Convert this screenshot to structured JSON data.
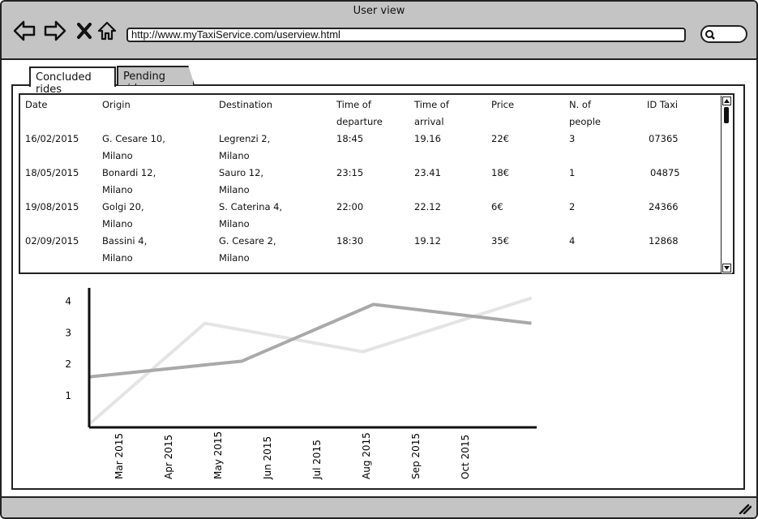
{
  "window": {
    "title": "User view"
  },
  "address_bar": {
    "url": "http://www.myTaxiService.com/userview.html"
  },
  "tabs": [
    {
      "label": "Concluded rides",
      "active": true
    },
    {
      "label": "Pending rides",
      "active": false
    }
  ],
  "table": {
    "headers": [
      "Date",
      "Origin",
      "Destination",
      "Time of\ndeparture",
      "Time of\narrival",
      "Price",
      "N. of\npeople",
      "ID Taxi"
    ],
    "rows": [
      [
        "16/02/2015",
        "G. Cesare 10,\nMilano",
        "Legrenzi 2,\nMilano",
        "18:45",
        "19.16",
        "22€",
        "3",
        "07365"
      ],
      [
        "18/05/2015",
        "Bonardi 12,\nMilano",
        "Sauro 12,\nMilano",
        "23:15",
        "23.41",
        "18€",
        "1",
        "04875"
      ],
      [
        "19/08/2015",
        "Golgi 20,\nMilano",
        "S. Caterina 4,\nMilano",
        "22:00",
        "22.12",
        "6€",
        "2",
        "24366"
      ],
      [
        "02/09/2015",
        "Bassini 4,\nMilano",
        "G. Cesare 2,\nMilano",
        "18:30",
        "19.12",
        "35€",
        "4",
        "12868"
      ]
    ]
  },
  "chart_data": {
    "type": "line",
    "x": [
      "Mar 2015",
      "Apr 2015",
      "May 2015",
      "Jun 2015",
      "Jul 2015",
      "Aug 2015",
      "Sep 2015",
      "Oct 2015"
    ],
    "yticks": [
      1,
      2,
      3,
      4
    ],
    "ylim": [
      0,
      4.5
    ],
    "grid": false,
    "series": [
      {
        "color": "#e4e4e4",
        "points": [
          [
            0,
            0.1
          ],
          [
            2.2,
            3.3
          ],
          [
            5.2,
            2.4
          ],
          [
            8.4,
            4.1
          ]
        ]
      },
      {
        "color": "#a9a9a9",
        "points": [
          [
            0,
            1.6
          ],
          [
            2.9,
            2.1
          ],
          [
            5.4,
            3.9
          ],
          [
            8.4,
            3.3
          ]
        ]
      }
    ]
  },
  "colors": {
    "chrome": "#c4c4c4",
    "border": "#222222"
  }
}
